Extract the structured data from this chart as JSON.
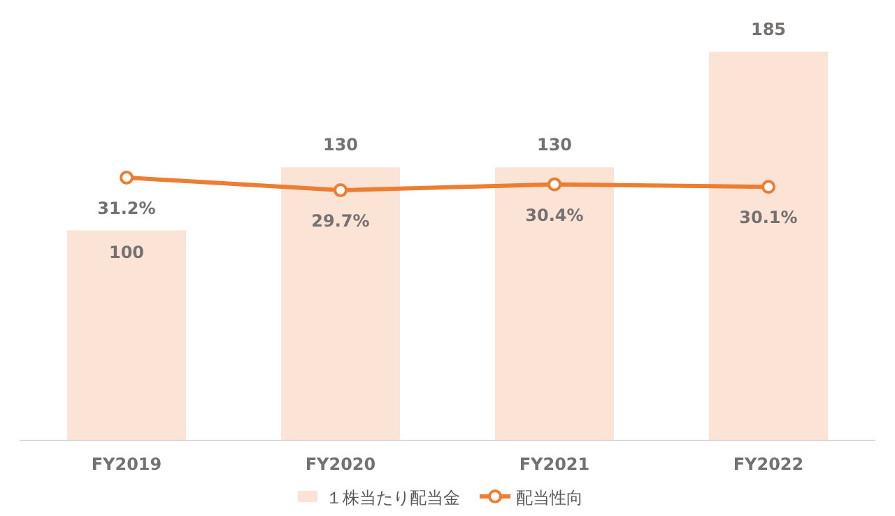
{
  "chart_data": {
    "type": "bar",
    "categories": [
      "FY2019",
      "FY2020",
      "FY2021",
      "FY2022"
    ],
    "series": [
      {
        "name": "１株当たり配当金",
        "color": "#fbe3d6",
        "values": [
          100,
          130,
          130,
          185
        ]
      },
      {
        "name": "配当性向",
        "type": "line",
        "axis": "y2",
        "color": "#ed7d31",
        "marker": "circle",
        "values": [
          31.2,
          29.7,
          30.4,
          30.1
        ],
        "value_labels": [
          "31.2%",
          "29.7%",
          "30.4%",
          "30.1%"
        ]
      }
    ],
    "data_labels": true,
    "legend": "bottom",
    "tick_labels": "x"
  }
}
